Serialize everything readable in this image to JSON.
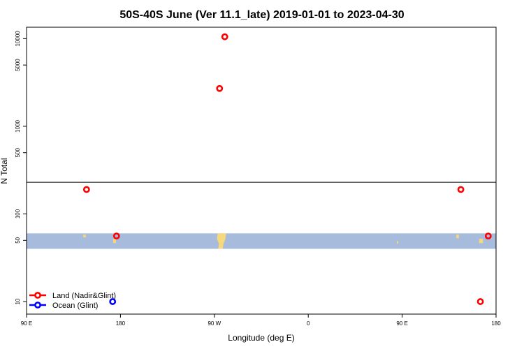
{
  "chart_data": {
    "type": "scatter",
    "title": "50S-40S June (Ver 11.1_late)   2019-01-01 to 2023-04-30",
    "xlabel": "Longitude (deg E)",
    "ylabel": "N Total",
    "y_scale": "log",
    "xlim": [
      90,
      450
    ],
    "ylim": [
      7.2,
      13500
    ],
    "x_ticks": [
      {
        "value": 90,
        "label": "90 E"
      },
      {
        "value": 162,
        "label": "180"
      },
      {
        "value": 234,
        "label": "90 W"
      },
      {
        "value": 306,
        "label": "0"
      },
      {
        "value": 378,
        "label": "90 E"
      },
      {
        "value": 450,
        "label": "180"
      }
    ],
    "y_ticks": [
      {
        "value": 10,
        "label": "10"
      },
      {
        "value": 50,
        "label": "50"
      },
      {
        "value": 100,
        "label": "100"
      },
      {
        "value": 500,
        "label": "500"
      },
      {
        "value": 1000,
        "label": "1000"
      },
      {
        "value": 5000,
        "label": "5000"
      },
      {
        "value": 10000,
        "label": "10000"
      }
    ],
    "reference_line": 230,
    "latitude_band": {
      "range": [
        40,
        60
      ],
      "color": "#a7bcdc",
      "land_color": "#f6d87d"
    },
    "land_patches": [
      [
        [
          133.5,
          58
        ],
        [
          135.5,
          58
        ],
        [
          135.5,
          54
        ],
        [
          133.5,
          54
        ]
      ],
      [
        [
          156.5,
          52
        ],
        [
          158.5,
          52
        ],
        [
          158.5,
          46.5
        ],
        [
          156.5,
          46.5
        ]
      ],
      [
        [
          236.5,
          60
        ],
        [
          243,
          60
        ],
        [
          242.5,
          52
        ],
        [
          241,
          46
        ],
        [
          240.5,
          40
        ],
        [
          237,
          40
        ],
        [
          237.5,
          46
        ],
        [
          236,
          52
        ]
      ],
      [
        [
          419.5,
          58
        ],
        [
          421.5,
          58
        ],
        [
          421.5,
          53
        ],
        [
          419.5,
          53
        ]
      ],
      [
        [
          437,
          52
        ],
        [
          440,
          52
        ],
        [
          440,
          46.5
        ],
        [
          437,
          46.5
        ]
      ],
      [
        [
          374,
          49
        ],
        [
          375,
          49
        ],
        [
          375,
          46
        ],
        [
          374,
          46
        ]
      ]
    ],
    "series": [
      {
        "name": "Land (Nadir&Glint)",
        "color": "#ff0000",
        "points": [
          {
            "x": 136,
            "y": 190
          },
          {
            "x": 159,
            "y": 56
          },
          {
            "x": 238,
            "y": 2700
          },
          {
            "x": 242,
            "y": 10500
          },
          {
            "x": 423,
            "y": 190
          },
          {
            "x": 438,
            "y": 10
          },
          {
            "x": 444,
            "y": 56
          }
        ]
      },
      {
        "name": "Ocean (Glint)",
        "color": "#0000ff",
        "points": [
          {
            "x": 156,
            "y": 10
          }
        ]
      }
    ],
    "legend": "bottom-left"
  }
}
